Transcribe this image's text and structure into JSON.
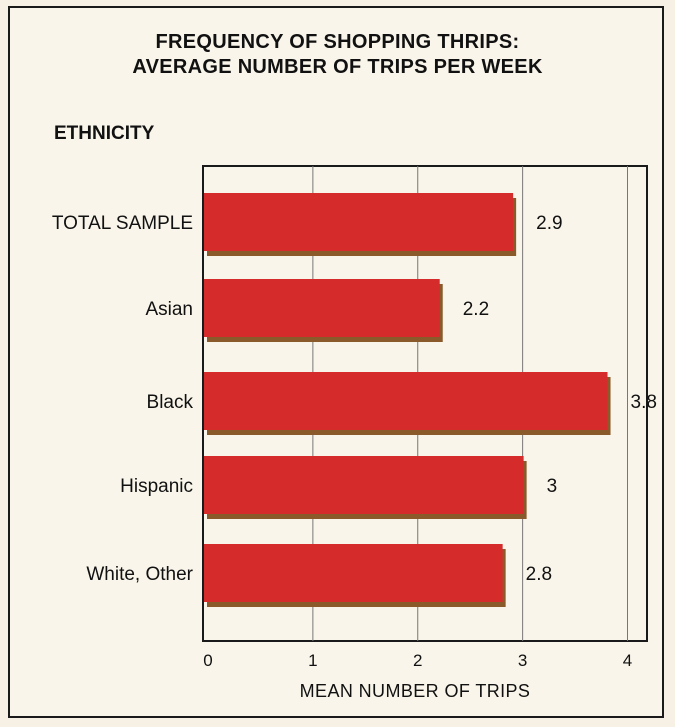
{
  "chart_data": {
    "type": "bar",
    "orientation": "horizontal",
    "title": "FREQUENCY OF SHOPPING THRIPS:",
    "title_line2": "AVERAGE NUMBER OF TRIPS PER WEEK",
    "group_label": "ETHNICITY",
    "categories": [
      "TOTAL SAMPLE",
      "Asian",
      "Black",
      "Hispanic",
      "White, Other"
    ],
    "values": [
      2.9,
      2.2,
      3.8,
      3,
      2.8
    ],
    "value_labels": [
      "2.9",
      "2.2",
      "3.8",
      "3",
      "2.8"
    ],
    "xlabel": "MEAN NUMBER OF TRIPS",
    "xlim": [
      0,
      4.2
    ],
    "xticks": [
      0,
      1,
      2,
      3,
      4
    ],
    "grid": true,
    "bar_color": "#d62b2b",
    "shadow_color": "#8a5a2a"
  }
}
